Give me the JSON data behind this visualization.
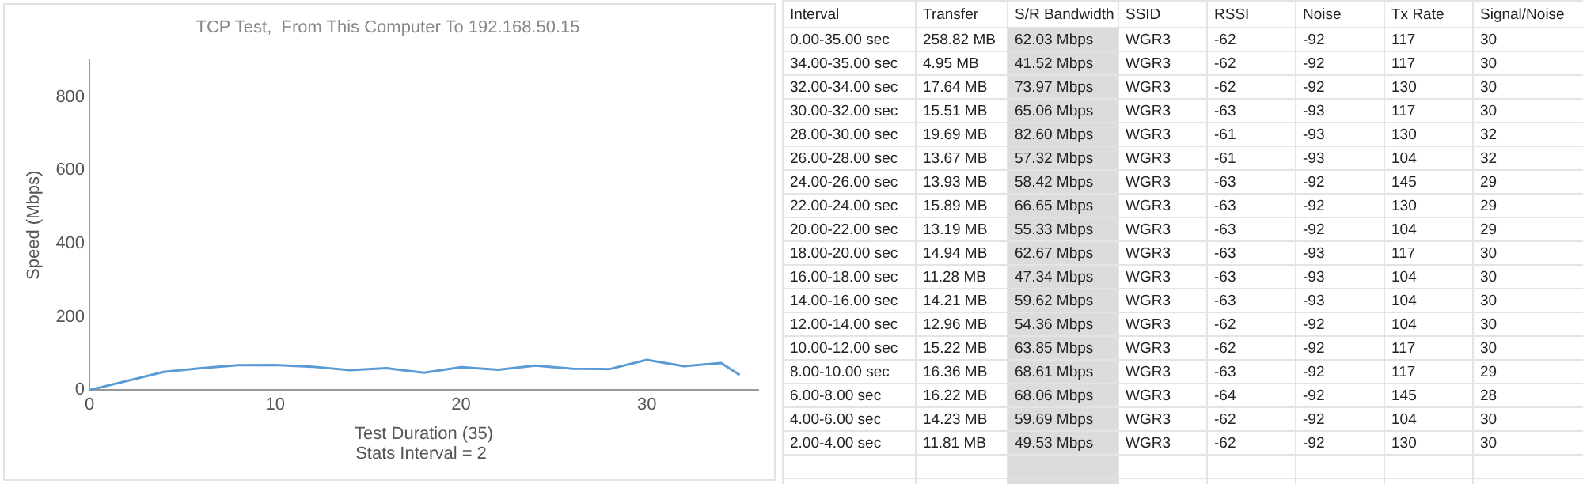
{
  "chart_data": [
    {
      "type": "line",
      "title": "TCP Test,  From This Computer To 192.168.50.15",
      "xlabel": "Test Duration (35)",
      "ylabel": "Speed (Mbps)",
      "annotations": [
        "Stats Interval = 2"
      ],
      "x": [
        0,
        4,
        6,
        8,
        10,
        12,
        14,
        16,
        18,
        20,
        22,
        24,
        26,
        28,
        30,
        32,
        34,
        35
      ],
      "series": [
        {
          "color": "#5b9bd5",
          "values": [
            0,
            49.53,
            59.69,
            68.06,
            68.61,
            63.85,
            54.36,
            59.62,
            47.34,
            62.67,
            55.33,
            66.65,
            58.42,
            57.32,
            82.6,
            65.06,
            73.97,
            41.52
          ]
        }
      ],
      "xlim": [
        0,
        36
      ],
      "xticks": [
        0,
        10,
        20,
        30
      ],
      "ylim": [
        0,
        900
      ],
      "yticks": [
        0,
        200,
        400,
        600,
        800
      ],
      "grid": false,
      "legend": false,
      "marker": "none",
      "line_style": "solid"
    },
    {
      "type": "other",
      "categories": [
        "Interval",
        "Transfer",
        "S/R Bandwidth",
        "SSID",
        "RSSI",
        "Noise",
        "Tx Rate",
        "Signal/Noise"
      ],
      "annotations": [
        "0.00-35.00 sec",
        "258.82 MB",
        "62.03 Mbps",
        "WGR3",
        "-62",
        "-92",
        "117",
        "30",
        "34.00-35.00 sec",
        "4.95 MB",
        "41.52 Mbps",
        "WGR3",
        "-62",
        "-92",
        "117",
        "30",
        "32.00-34.00 sec",
        "17.64 MB",
        "73.97 Mbps",
        "WGR3",
        "-62",
        "-92",
        "130",
        "30",
        "30.00-32.00 sec",
        "15.51 MB",
        "65.06 Mbps",
        "WGR3",
        "-63",
        "-93",
        "117",
        "30",
        "28.00-30.00 sec",
        "19.69 MB",
        "82.60 Mbps",
        "WGR3",
        "-61",
        "-93",
        "130",
        "32",
        "26.00-28.00 sec",
        "13.67 MB",
        "57.32 Mbps",
        "WGR3",
        "-61",
        "-93",
        "104",
        "32",
        "24.00-26.00 sec",
        "13.93 MB",
        "58.42 Mbps",
        "WGR3",
        "-63",
        "-92",
        "145",
        "29",
        "22.00-24.00 sec",
        "15.89 MB",
        "66.65 Mbps",
        "WGR3",
        "-63",
        "-92",
        "130",
        "29",
        "20.00-22.00 sec",
        "13.19 MB",
        "55.33 Mbps",
        "WGR3",
        "-63",
        "-92",
        "104",
        "29",
        "18.00-20.00 sec",
        "14.94 MB",
        "62.67 Mbps",
        "WGR3",
        "-63",
        "-93",
        "117",
        "30",
        "16.00-18.00 sec",
        "11.28 MB",
        "47.34 Mbps",
        "WGR3",
        "-63",
        "-93",
        "104",
        "30",
        "14.00-16.00 sec",
        "14.21 MB",
        "59.62 Mbps",
        "WGR3",
        "-63",
        "-93",
        "104",
        "30",
        "12.00-14.00 sec",
        "12.96 MB",
        "54.36 Mbps",
        "WGR3",
        "-62",
        "-92",
        "104",
        "30",
        "10.00-12.00 sec",
        "15.22 MB",
        "63.85 Mbps",
        "WGR3",
        "-62",
        "-92",
        "117",
        "30",
        "8.00-10.00 sec",
        "16.36 MB",
        "68.61 Mbps",
        "WGR3",
        "-63",
        "-92",
        "117",
        "29",
        "6.00-8.00 sec",
        "16.22 MB",
        "68.06 Mbps",
        "WGR3",
        "-64",
        "-92",
        "145",
        "28",
        "4.00-6.00 sec",
        "14.23 MB",
        "59.69 Mbps",
        "WGR3",
        "-62",
        "-92",
        "104",
        "30",
        "2.00-4.00 sec",
        "11.81 MB",
        "49.53 Mbps",
        "WGR3",
        "-62",
        "-92",
        "130",
        "30"
      ]
    }
  ]
}
